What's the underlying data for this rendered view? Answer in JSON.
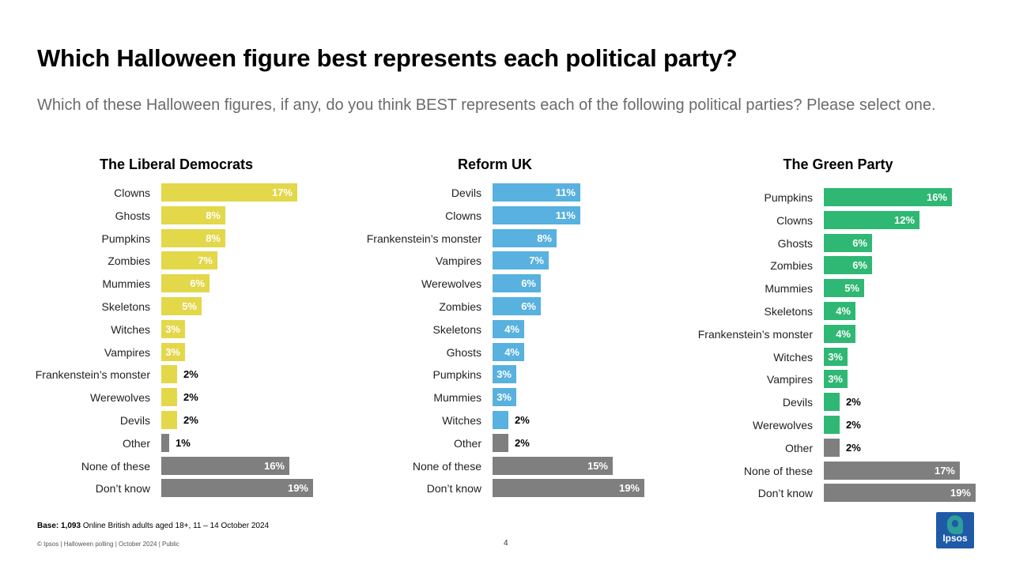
{
  "title": "Which Halloween figure best represents each political party?",
  "subtitle": "Which of these Halloween figures, if any, do you think BEST represents each of the following political parties? Please select one.",
  "colors": {
    "libdem": "#e3d74a",
    "reform": "#58b1de",
    "green": "#2fb874",
    "other": "#7f7f7f"
  },
  "chart_data": [
    {
      "type": "bar",
      "orientation": "horizontal",
      "title": "The Liberal Democrats",
      "categories": [
        "Clowns",
        "Ghosts",
        "Pumpkins",
        "Zombies",
        "Mummies",
        "Skeletons",
        "Witches",
        "Vampires",
        "Frankenstein’s monster",
        "Werewolves",
        "Devils",
        "Other",
        "None of these",
        "Don’t know"
      ],
      "values": [
        17,
        8,
        8,
        7,
        6,
        5,
        3,
        3,
        2,
        2,
        2,
        1,
        16,
        19
      ],
      "value_labels": [
        "17%",
        "8%",
        "8%",
        "7%",
        "6%",
        "5%",
        "3%",
        "3%",
        "2%",
        "2%",
        "2%",
        "1%",
        "16%",
        "19%"
      ],
      "unit": "%",
      "xlim": [
        0,
        20
      ]
    },
    {
      "type": "bar",
      "orientation": "horizontal",
      "title": "Reform UK",
      "categories": [
        "Devils",
        "Clowns",
        "Frankenstein’s monster",
        "Vampires",
        "Werewolves",
        "Zombies",
        "Skeletons",
        "Ghosts",
        "Pumpkins",
        "Mummies",
        "Witches",
        "Other",
        "None of these",
        "Don’t know"
      ],
      "values": [
        11,
        11,
        8,
        7,
        6,
        6,
        4,
        4,
        3,
        3,
        2,
        2,
        15,
        19
      ],
      "value_labels": [
        "11%",
        "11%",
        "8%",
        "7%",
        "6%",
        "6%",
        "4%",
        "4%",
        "3%",
        "3%",
        "2%",
        "2%",
        "15%",
        "19%"
      ],
      "unit": "%",
      "xlim": [
        0,
        20
      ]
    },
    {
      "type": "bar",
      "orientation": "horizontal",
      "title": "The Green Party",
      "categories": [
        "Pumpkins",
        "Clowns",
        "Ghosts",
        "Zombies",
        "Mummies",
        "Skeletons",
        "Frankenstein’s monster",
        "Witches",
        "Vampires",
        "Devils",
        "Werewolves",
        "Other",
        "None of these",
        "Don’t know"
      ],
      "values": [
        16,
        12,
        6,
        6,
        5,
        4,
        4,
        3,
        3,
        2,
        2,
        2,
        17,
        19
      ],
      "value_labels": [
        "16%",
        "12%",
        "6%",
        "6%",
        "5%",
        "4%",
        "4%",
        "3%",
        "3%",
        "2%",
        "2%",
        "2%",
        "17%",
        "19%"
      ],
      "unit": "%",
      "xlim": [
        0,
        20
      ]
    }
  ],
  "base_note": {
    "label": "Base: 1,093",
    "text": " Online British adults aged 18+, 11 – 14 October 2024"
  },
  "footer": "© Ipsos | Halloween polling | October 2024 | Public",
  "page_number": "4",
  "logo_text": "Ipsos"
}
